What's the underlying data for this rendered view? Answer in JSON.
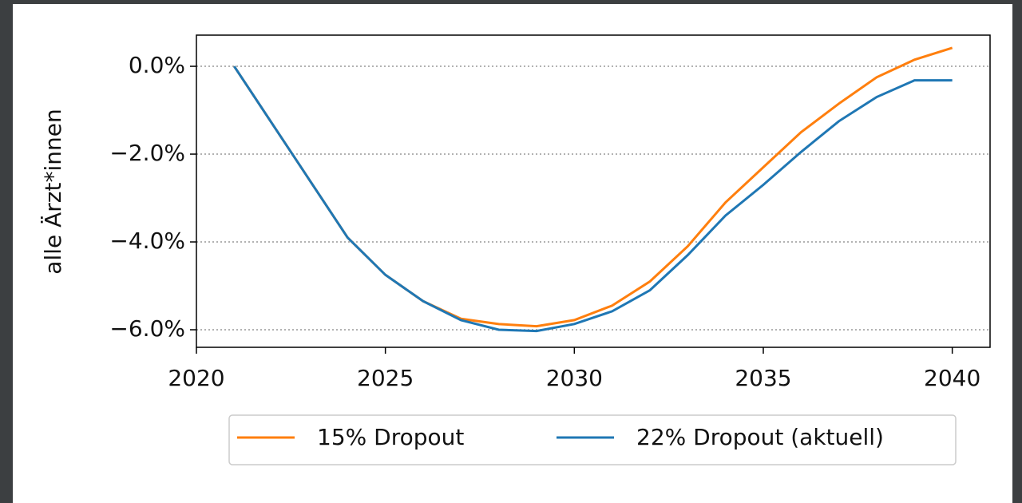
{
  "chart_data": {
    "type": "line",
    "ylabel": "alle Ärzt*innen",
    "x": [
      2021,
      2022,
      2023,
      2024,
      2025,
      2026,
      2027,
      2028,
      2029,
      2030,
      2031,
      2032,
      2033,
      2034,
      2035,
      2036,
      2037,
      2038,
      2039,
      2040
    ],
    "series": [
      {
        "name": "15% Dropout",
        "color": "#ff7f0e",
        "values": [
          0,
          -1.3,
          -2.6,
          -3.9,
          -4.75,
          -5.35,
          -5.75,
          -5.87,
          -5.92,
          -5.78,
          -5.45,
          -4.9,
          -4.1,
          -3.1,
          -2.3,
          -1.5,
          -0.85,
          -0.25,
          0.15,
          0.42
        ]
      },
      {
        "name": "22% Dropout (aktuell)",
        "color": "#1f77b4",
        "values": [
          0,
          -1.3,
          -2.6,
          -3.9,
          -4.75,
          -5.35,
          -5.78,
          -6.0,
          -6.03,
          -5.87,
          -5.58,
          -5.1,
          -4.3,
          -3.4,
          -2.7,
          -1.95,
          -1.25,
          -0.7,
          -0.32,
          -0.32
        ]
      }
    ],
    "xlim": [
      2020,
      2041
    ],
    "xticks": [
      2020,
      2025,
      2030,
      2035,
      2040
    ],
    "ylim": [
      -6.4,
      0.71
    ],
    "yticks": [
      {
        "value": -6,
        "label": "−6.0%"
      },
      {
        "value": -4,
        "label": "−4.0%"
      },
      {
        "value": -2,
        "label": "−2.0%"
      },
      {
        "value": 0,
        "label": "0.0%"
      }
    ],
    "grid": true,
    "legend": "bottom"
  }
}
